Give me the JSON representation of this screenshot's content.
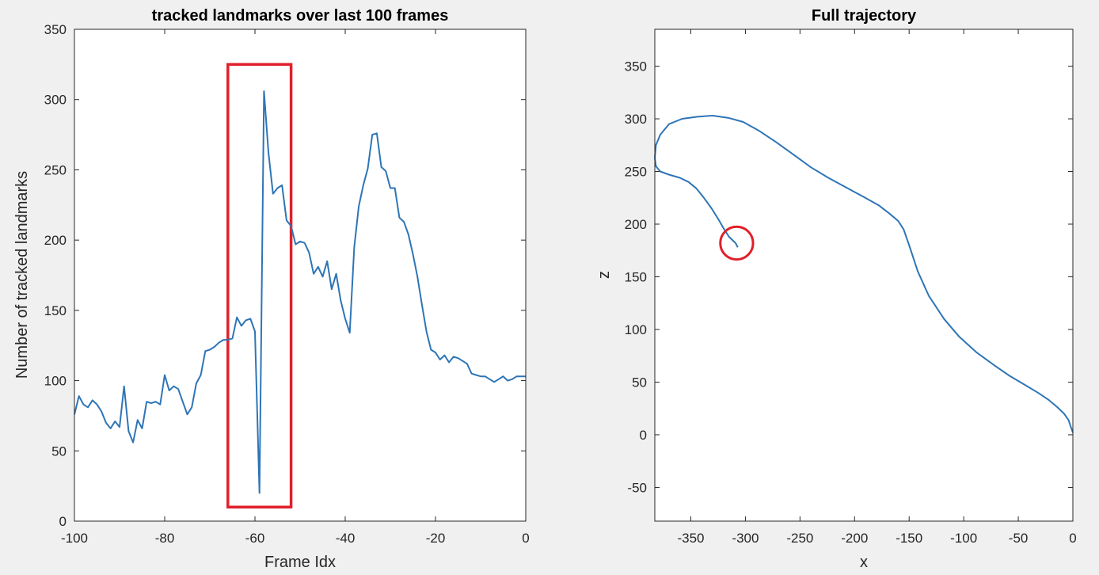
{
  "figure": {
    "background": "#f0f0f0",
    "line_color": "#2e75b6",
    "highlight_color": "#e0202a"
  },
  "chart_data": [
    {
      "type": "line",
      "title": "tracked landmarks over last 100 frames",
      "xlabel": "Frame Idx",
      "ylabel": "Number of tracked landmarks",
      "xlim": [
        -100,
        0
      ],
      "ylim": [
        0,
        350
      ],
      "xticks": [
        "-100",
        "-80",
        "-60",
        "-40",
        "-20",
        "0"
      ],
      "yticks": [
        "0",
        "50",
        "100",
        "150",
        "200",
        "250",
        "300",
        "350"
      ],
      "grid": false,
      "highlight": {
        "shape": "rectangle",
        "x_range": [
          -66,
          -52
        ],
        "y_range": [
          10,
          325
        ]
      },
      "series": [
        {
          "x": [
            -100,
            -99,
            -98,
            -97,
            -96,
            -95,
            -94,
            -93,
            -92,
            -91,
            -90,
            -89,
            -88,
            -87,
            -86,
            -85,
            -84,
            -83,
            -82,
            -81,
            -80,
            -79,
            -78,
            -77,
            -76,
            -75,
            -74,
            -73,
            -72,
            -71,
            -70,
            -69,
            -68,
            -67,
            -66,
            -65,
            -64,
            -63,
            -62,
            -61,
            -60,
            -59,
            -58,
            -57,
            -56,
            -55,
            -54,
            -53,
            -52,
            -51,
            -50,
            -49,
            -48,
            -47,
            -46,
            -45,
            -44,
            -43,
            -42,
            -41,
            -40,
            -39,
            -38,
            -37,
            -36,
            -35,
            -34,
            -33,
            -32,
            -31,
            -30,
            -29,
            -28,
            -27,
            -26,
            -25,
            -24,
            -23,
            -22,
            -21,
            -20,
            -19,
            -18,
            -17,
            -16,
            -15,
            -14,
            -13,
            -12,
            -11,
            -10,
            -9,
            -8,
            -7,
            -6,
            -5,
            -4,
            -3,
            -2,
            -1,
            0
          ],
          "y": [
            76,
            89,
            83,
            81,
            86,
            83,
            78,
            70,
            66,
            71,
            67,
            96,
            64,
            56,
            72,
            66,
            85,
            84,
            85,
            83,
            104,
            93,
            96,
            94,
            85,
            76,
            81,
            98,
            104,
            121,
            122,
            124,
            127,
            129,
            129,
            130,
            145,
            139,
            143,
            144,
            135,
            20,
            306,
            262,
            233,
            237,
            239,
            214,
            210,
            197,
            199,
            198,
            191,
            176,
            181,
            174,
            185,
            165,
            176,
            157,
            144,
            134,
            195,
            224,
            239,
            251,
            275,
            276,
            252,
            249,
            237,
            237,
            216,
            213,
            204,
            190,
            174,
            154,
            135,
            122,
            120,
            115,
            118,
            113,
            117,
            116,
            114,
            112,
            105,
            104,
            103,
            103,
            101,
            99,
            101,
            103,
            100,
            101,
            103,
            103,
            103
          ]
        }
      ]
    },
    {
      "type": "line",
      "title": "Full trajectory",
      "xlabel": "x",
      "ylabel": "z",
      "xlim": [
        -383,
        0
      ],
      "ylim": [
        -82,
        385
      ],
      "xticks": [
        "-350",
        "-300",
        "-250",
        "-200",
        "-150",
        "-100",
        "-50",
        "0"
      ],
      "yticks": [
        "-50",
        "0",
        "50",
        "100",
        "150",
        "200",
        "250",
        "300",
        "350"
      ],
      "grid": false,
      "highlight": {
        "shape": "circle",
        "center": [
          -308,
          182
        ],
        "radius_x": 15
      },
      "series": [
        {
          "x": [
            0,
            -2,
            -4,
            -8,
            -14,
            -22,
            -32,
            -45,
            -58,
            -72,
            -88,
            -104,
            -118,
            -132,
            -142,
            -150,
            -155,
            -160,
            -168,
            -178,
            -192,
            -208,
            -224,
            -240,
            -256,
            -272,
            -288,
            -302,
            -316,
            -330,
            -344,
            -358,
            -370,
            -378,
            -382,
            -383,
            -382,
            -378,
            -370,
            -360,
            -352,
            -345,
            -338,
            -331,
            -325,
            -320,
            -315,
            -312,
            -310,
            -309,
            -307
          ],
          "y": [
            2,
            8,
            14,
            20,
            26,
            33,
            40,
            48,
            56,
            66,
            78,
            93,
            110,
            132,
            155,
            180,
            195,
            203,
            210,
            218,
            226,
            235,
            244,
            254,
            266,
            278,
            289,
            297,
            301,
            303,
            302,
            300,
            295,
            285,
            275,
            263,
            255,
            250,
            247,
            244,
            240,
            234,
            225,
            215,
            205,
            196,
            188,
            185,
            183,
            182,
            178
          ]
        }
      ]
    }
  ]
}
